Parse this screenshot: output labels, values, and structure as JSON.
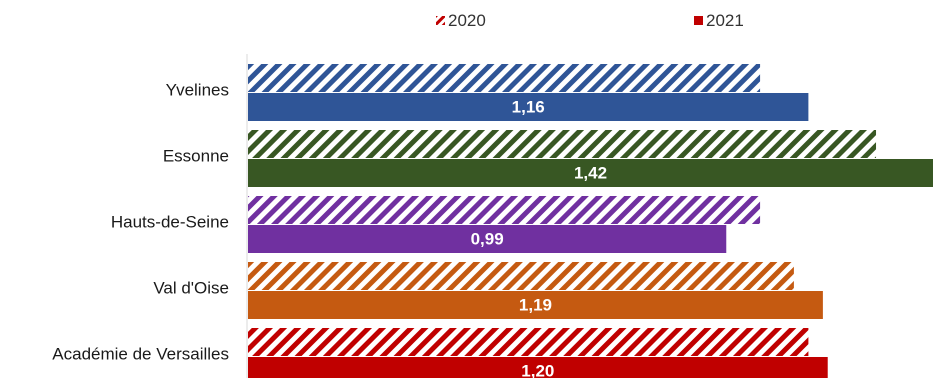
{
  "chart_data": {
    "type": "bar",
    "orientation": "horizontal",
    "categories": [
      "Yvelines",
      "Essonne",
      "Hauts-de-Seine",
      "Val d'Oise",
      "Académie de Versailles"
    ],
    "series": [
      {
        "name": "2020",
        "values": [
          1.06,
          1.3,
          1.06,
          1.13,
          1.16
        ],
        "pattern": "diagonal-hatch",
        "data_labels_shown": false
      },
      {
        "name": "2021",
        "values": [
          1.16,
          1.42,
          0.99,
          1.19,
          1.2
        ],
        "pattern": "solid",
        "data_labels": [
          "1,16",
          "1,42",
          "0,99",
          "1,19",
          "1,20"
        ],
        "data_labels_shown": true
      }
    ],
    "category_colors": [
      "#2F5597",
      "#385723",
      "#7030A0",
      "#C55A11",
      "#C00000"
    ],
    "legend_position": "top",
    "xlim": [
      0,
      1.42
    ],
    "grid": false
  }
}
